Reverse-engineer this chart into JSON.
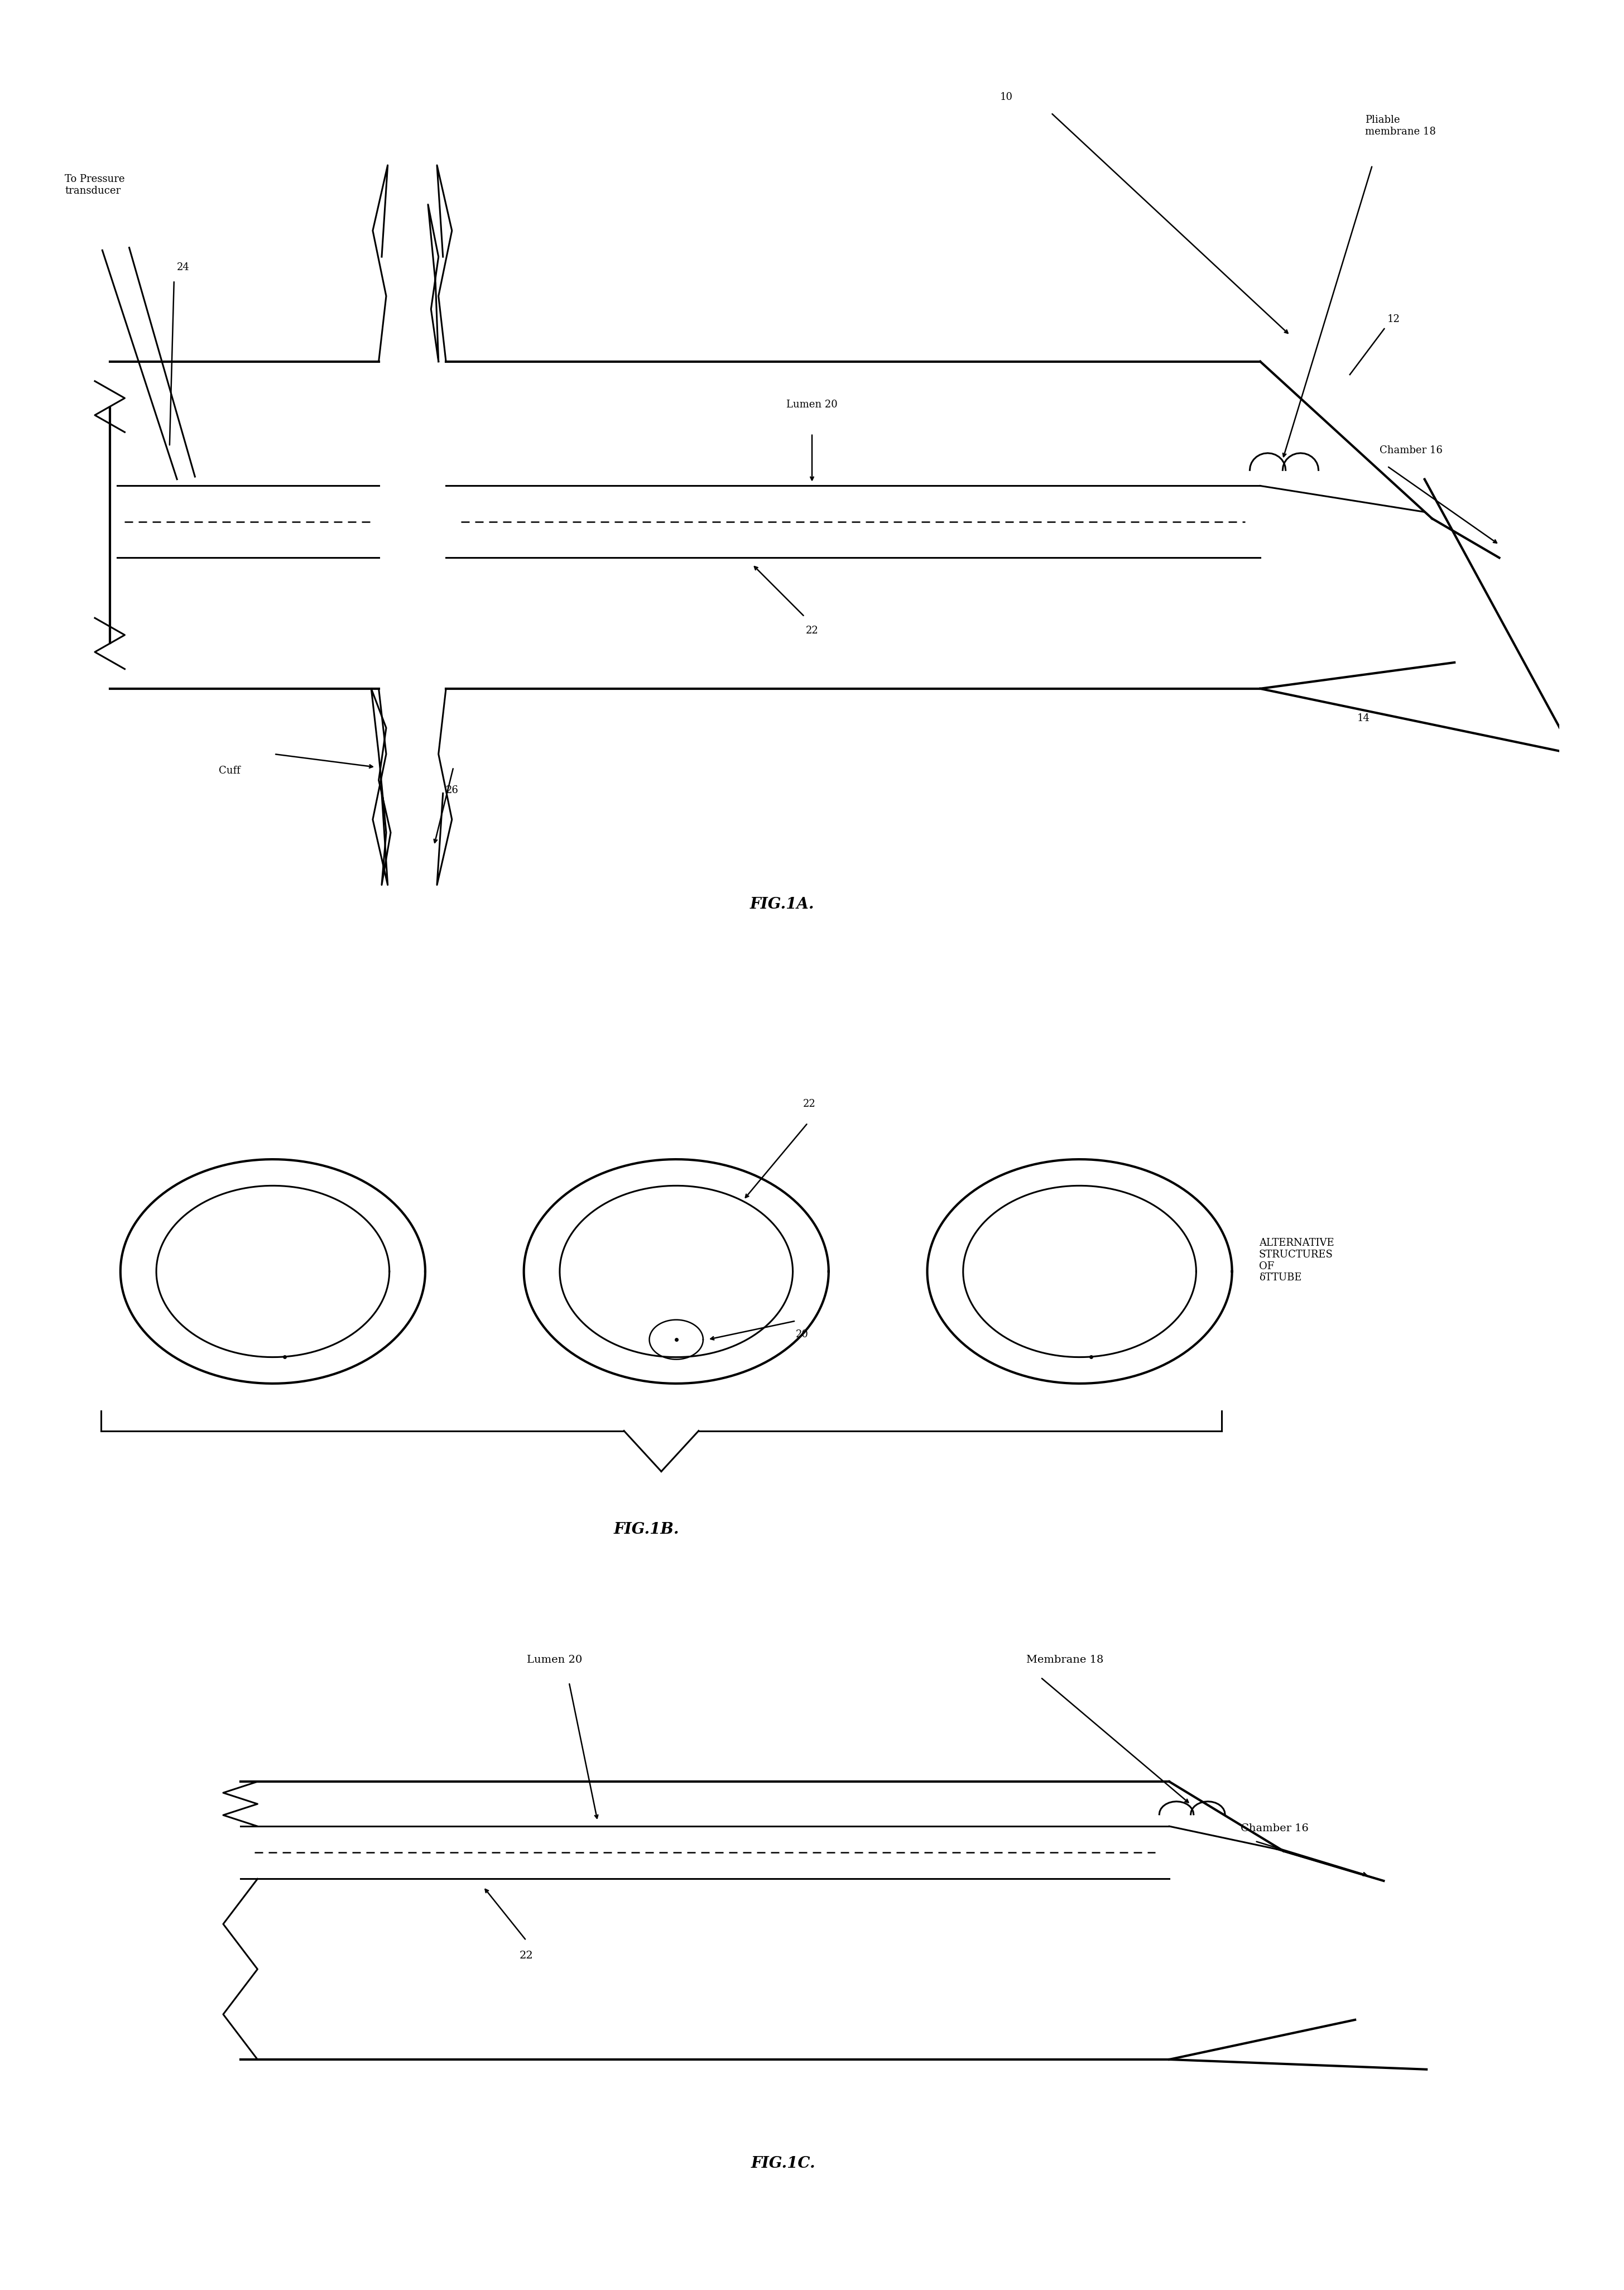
{
  "bg_color": "#ffffff",
  "line_color": "#000000",
  "fig_width": 29.1,
  "fig_height": 41.03,
  "fig1a_label": "FIG.1A.",
  "fig1b_label": "FIG.1B.",
  "fig1c_label": "FIG.1C.",
  "alt_structures_text": "ALTERNATIVE\nSTRUCTURES\nOF\nδTTUBE"
}
